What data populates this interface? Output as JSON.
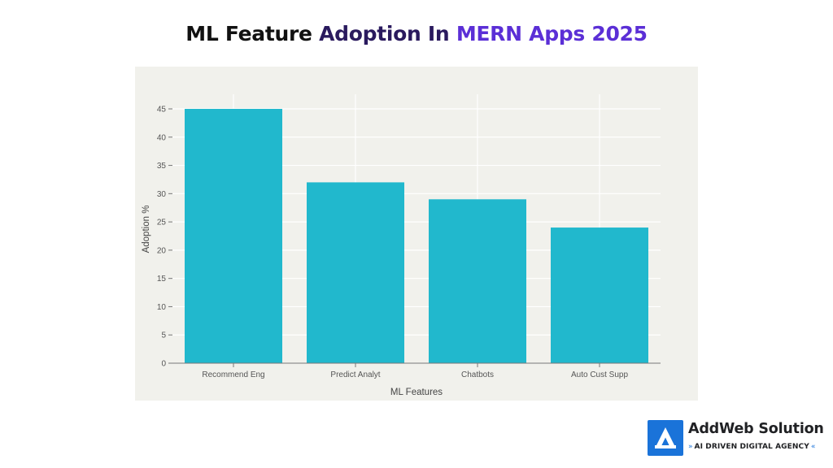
{
  "title": {
    "segments": [
      {
        "text": "ML Feature ",
        "color": "#111111"
      },
      {
        "text": "Adoption In ",
        "color": "#2a1a5e"
      },
      {
        "text": "MERN Apps 2025",
        "color": "#5b2fd6"
      }
    ]
  },
  "colors": {
    "bar": "#21b8cd",
    "panel_background": "#f1f1ec",
    "grid": "#ffffff",
    "axis": "#777777"
  },
  "chart_data": {
    "type": "bar",
    "title": "ML Feature Adoption In MERN Apps 2025",
    "categories": [
      "Recommend Eng",
      "Predict Analyt",
      "Chatbots",
      "Auto Cust Supp"
    ],
    "values": [
      45,
      32,
      29,
      24
    ],
    "xlabel": "ML Features",
    "ylabel": "Adoption %",
    "ylim": [
      0,
      45
    ],
    "yticks": [
      0,
      5,
      10,
      15,
      20,
      25,
      30,
      35,
      40,
      45
    ],
    "grid": true,
    "legend": "none"
  },
  "brand": {
    "name": "AddWeb Solution",
    "tagline": "AI DRIVEN DIGITAL AGENCY",
    "logo_icon": "addweb-logo-icon",
    "accent_color": "#1a73d9"
  }
}
